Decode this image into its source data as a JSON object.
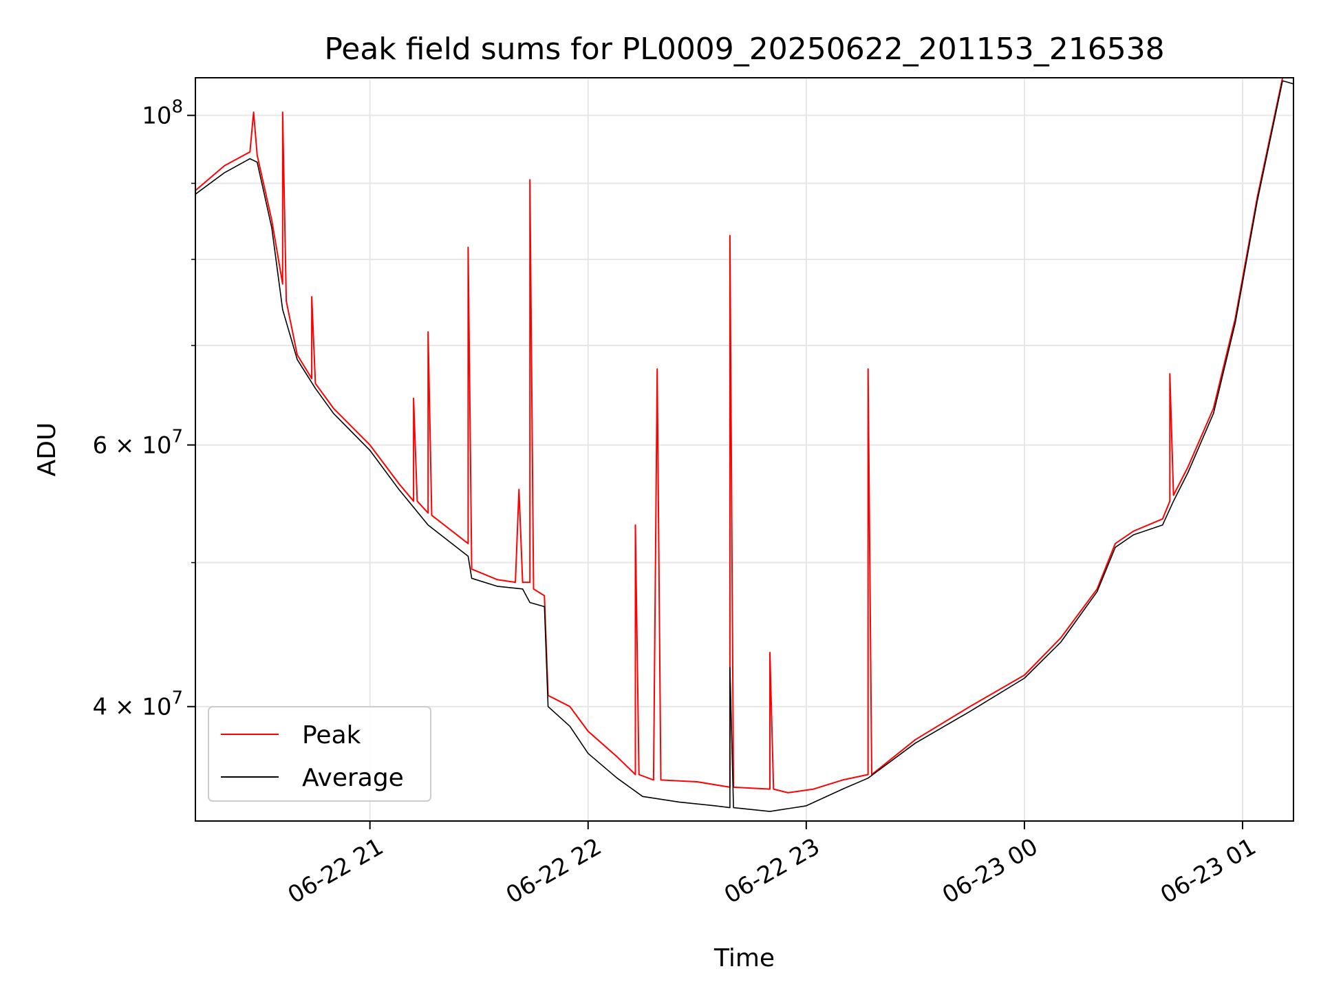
{
  "chart_data": {
    "type": "line",
    "title": "Peak field sums for PL0009_20250622_201153_216538",
    "xlabel": "Time",
    "ylabel": "ADU",
    "yscale": "log",
    "xlim": [
      "2025-06-22 20:12",
      "2025-06-23 01:14"
    ],
    "ylim": [
      33500000,
      106000000
    ],
    "grid": true,
    "legend_position": "lower-left",
    "x_ticks": [
      "06-22 21",
      "06-22 22",
      "06-22 23",
      "06-23 00",
      "06-23 01"
    ],
    "y_ticks": [
      {
        "value": 40000000,
        "label": "4 × 10^7"
      },
      {
        "value": 60000000,
        "label": "6 × 10^7"
      },
      {
        "value": 100000000,
        "label": "10^8"
      }
    ],
    "y_minor_ticks": [
      50000000,
      70000000,
      80000000,
      90000000
    ],
    "series": [
      {
        "name": "Peak",
        "color": "#ff0000",
        "points": [
          [
            "2025-06-22 20:12",
            89000000
          ],
          [
            "2025-06-22 20:20",
            92500000
          ],
          [
            "2025-06-22 20:27",
            94500000
          ],
          [
            "2025-06-22 20:28",
            100500000
          ],
          [
            "2025-06-22 20:29",
            94000000
          ],
          [
            "2025-06-22 20:33",
            85000000
          ],
          [
            "2025-06-22 20:36",
            77000000
          ],
          [
            "2025-06-22 20:36",
            100500000
          ],
          [
            "2025-06-22 20:37",
            75000000
          ],
          [
            "2025-06-22 20:40",
            69000000
          ],
          [
            "2025-06-22 20:44",
            66500000
          ],
          [
            "2025-06-22 20:44",
            75500000
          ],
          [
            "2025-06-22 20:45",
            66000000
          ],
          [
            "2025-06-22 20:50",
            63500000
          ],
          [
            "2025-06-22 21:00",
            60000000
          ],
          [
            "2025-06-22 21:08",
            56500000
          ],
          [
            "2025-06-22 21:12",
            55000000
          ],
          [
            "2025-06-22 21:12",
            64500000
          ],
          [
            "2025-06-22 21:13",
            55000000
          ],
          [
            "2025-06-22 21:16",
            54000000
          ],
          [
            "2025-06-22 21:16",
            71500000
          ],
          [
            "2025-06-22 21:17",
            53800000
          ],
          [
            "2025-06-22 21:27",
            51500000
          ],
          [
            "2025-06-22 21:27",
            81500000
          ],
          [
            "2025-06-22 21:28",
            49500000
          ],
          [
            "2025-06-22 21:35",
            48700000
          ],
          [
            "2025-06-22 21:40",
            48500000
          ],
          [
            "2025-06-22 21:41",
            56000000
          ],
          [
            "2025-06-22 21:42",
            48500000
          ],
          [
            "2025-06-22 21:44",
            48500000
          ],
          [
            "2025-06-22 21:44",
            90500000
          ],
          [
            "2025-06-22 21:45",
            48000000
          ],
          [
            "2025-06-22 21:48",
            47500000
          ],
          [
            "2025-06-22 21:49",
            40700000
          ],
          [
            "2025-06-22 21:55",
            40000000
          ],
          [
            "2025-06-22 22:00",
            38500000
          ],
          [
            "2025-06-22 22:08",
            37000000
          ],
          [
            "2025-06-22 22:13",
            36000000
          ],
          [
            "2025-06-22 22:13",
            53000000
          ],
          [
            "2025-06-22 22:14",
            36000000
          ],
          [
            "2025-06-22 22:18",
            35700000
          ],
          [
            "2025-06-22 22:19",
            67500000
          ],
          [
            "2025-06-22 22:20",
            35700000
          ],
          [
            "2025-06-22 22:30",
            35600000
          ],
          [
            "2025-06-22 22:39",
            35300000
          ],
          [
            "2025-06-22 22:39",
            83000000
          ],
          [
            "2025-06-22 22:40",
            35300000
          ],
          [
            "2025-06-22 22:50",
            35200000
          ],
          [
            "2025-06-22 22:50",
            43500000
          ],
          [
            "2025-06-22 22:51",
            35200000
          ],
          [
            "2025-06-22 22:55",
            35000000
          ],
          [
            "2025-06-22 23:02",
            35200000
          ],
          [
            "2025-06-22 23:10",
            35700000
          ],
          [
            "2025-06-22 23:17",
            36000000
          ],
          [
            "2025-06-22 23:17",
            67500000
          ],
          [
            "2025-06-22 23:18",
            36000000
          ],
          [
            "2025-06-22 23:30",
            38000000
          ],
          [
            "2025-06-22 23:45",
            40000000
          ],
          [
            "2025-06-23 00:00",
            42000000
          ],
          [
            "2025-06-23 00:10",
            44500000
          ],
          [
            "2025-06-23 00:20",
            48000000
          ],
          [
            "2025-06-23 00:25",
            51500000
          ],
          [
            "2025-06-23 00:30",
            52500000
          ],
          [
            "2025-06-23 00:38",
            53500000
          ],
          [
            "2025-06-23 00:40",
            55000000
          ],
          [
            "2025-06-23 00:40",
            67000000
          ],
          [
            "2025-06-23 00:41",
            55500000
          ],
          [
            "2025-06-23 00:45",
            58000000
          ],
          [
            "2025-06-23 00:52",
            63500000
          ],
          [
            "2025-06-23 00:58",
            73000000
          ],
          [
            "2025-06-23 01:04",
            88000000
          ],
          [
            "2025-06-23 01:09",
            100500000
          ],
          [
            "2025-06-23 01:11",
            106000000
          ],
          [
            "2025-06-23 01:14",
            106000000
          ]
        ]
      },
      {
        "name": "Average",
        "color": "#000000",
        "points": [
          [
            "2025-06-22 20:12",
            88500000
          ],
          [
            "2025-06-22 20:20",
            91500000
          ],
          [
            "2025-06-22 20:27",
            93500000
          ],
          [
            "2025-06-22 20:29",
            93000000
          ],
          [
            "2025-06-22 20:33",
            84000000
          ],
          [
            "2025-06-22 20:36",
            74000000
          ],
          [
            "2025-06-22 20:40",
            68500000
          ],
          [
            "2025-06-22 20:45",
            65500000
          ],
          [
            "2025-06-22 20:50",
            63000000
          ],
          [
            "2025-06-22 21:00",
            59500000
          ],
          [
            "2025-06-22 21:08",
            56000000
          ],
          [
            "2025-06-22 21:16",
            53000000
          ],
          [
            "2025-06-22 21:27",
            50500000
          ],
          [
            "2025-06-22 21:28",
            48800000
          ],
          [
            "2025-06-22 21:35",
            48200000
          ],
          [
            "2025-06-22 21:42",
            48000000
          ],
          [
            "2025-06-22 21:44",
            47000000
          ],
          [
            "2025-06-22 21:48",
            46700000
          ],
          [
            "2025-06-22 21:49",
            40000000
          ],
          [
            "2025-06-22 21:55",
            38800000
          ],
          [
            "2025-06-22 22:00",
            37200000
          ],
          [
            "2025-06-22 22:08",
            35800000
          ],
          [
            "2025-06-22 22:15",
            34800000
          ],
          [
            "2025-06-22 22:25",
            34500000
          ],
          [
            "2025-06-22 22:35",
            34300000
          ],
          [
            "2025-06-22 22:39",
            34200000
          ],
          [
            "2025-06-22 22:39",
            42500000
          ],
          [
            "2025-06-22 22:40",
            34200000
          ],
          [
            "2025-06-22 22:50",
            34000000
          ],
          [
            "2025-06-22 23:00",
            34300000
          ],
          [
            "2025-06-22 23:10",
            35200000
          ],
          [
            "2025-06-22 23:17",
            35800000
          ],
          [
            "2025-06-22 23:30",
            37800000
          ],
          [
            "2025-06-22 23:45",
            39700000
          ],
          [
            "2025-06-23 00:00",
            41800000
          ],
          [
            "2025-06-23 00:10",
            44200000
          ],
          [
            "2025-06-23 00:20",
            47800000
          ],
          [
            "2025-06-23 00:25",
            51200000
          ],
          [
            "2025-06-23 00:30",
            52200000
          ],
          [
            "2025-06-23 00:38",
            53000000
          ],
          [
            "2025-06-23 00:41",
            55000000
          ],
          [
            "2025-06-23 00:45",
            57500000
          ],
          [
            "2025-06-23 00:52",
            63000000
          ],
          [
            "2025-06-23 00:58",
            72500000
          ],
          [
            "2025-06-23 01:04",
            87500000
          ],
          [
            "2025-06-23 01:09",
            100000000
          ],
          [
            "2025-06-23 01:11",
            105500000
          ],
          [
            "2025-06-23 01:14",
            105000000
          ]
        ]
      }
    ]
  }
}
